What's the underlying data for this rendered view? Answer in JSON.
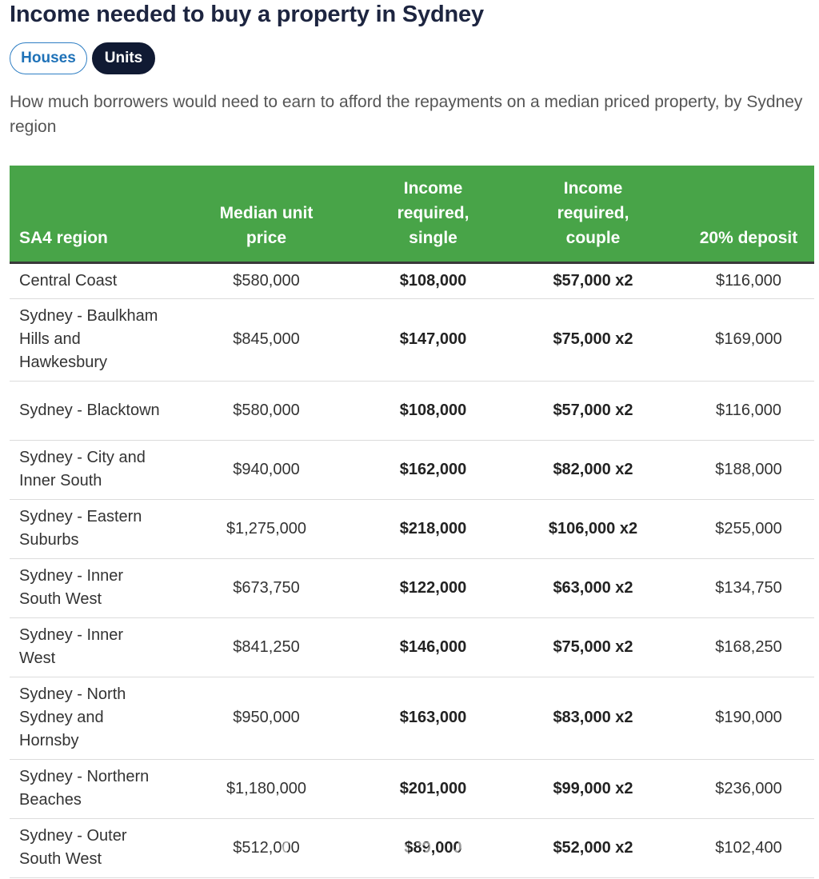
{
  "title": "Income needed to buy a property in Sydney",
  "toggle": {
    "houses_label": "Houses",
    "units_label": "Units",
    "selected": "Units"
  },
  "subtitle": "How much borrowers would need to earn to afford the repayments on a median priced property, by Sydney region",
  "colors": {
    "header_bg": "#48a448",
    "active_pill": "#101a33",
    "pill_border": "#2e7ec4"
  },
  "chart_data": {
    "type": "table",
    "columns": [
      "SA4 region",
      "Median unit price",
      "Income required, single",
      "Income required, couple",
      "20% deposit"
    ],
    "rows": [
      [
        "Central Coast",
        "$580,000",
        "$108,000",
        "$57,000 x2",
        "$116,000"
      ],
      [
        "Sydney - Baulkham Hills and Hawkesbury",
        "$845,000",
        "$147,000",
        "$75,000 x2",
        "$169,000"
      ],
      [
        "Sydney - Blacktown",
        "$580,000",
        "$108,000",
        "$57,000 x2",
        "$116,000"
      ],
      [
        "Sydney - City and Inner South",
        "$940,000",
        "$162,000",
        "$82,000 x2",
        "$188,000"
      ],
      [
        "Sydney - Eastern Suburbs",
        "$1,275,000",
        "$218,000",
        "$106,000 x2",
        "$255,000"
      ],
      [
        "Sydney - Inner South West",
        "$673,750",
        "$122,000",
        "$63,000 x2",
        "$134,750"
      ],
      [
        "Sydney - Inner West",
        "$841,250",
        "$146,000",
        "$75,000 x2",
        "$168,250"
      ],
      [
        "Sydney - North Sydney and Hornsby",
        "$950,000",
        "$163,000",
        "$83,000 x2",
        "$190,000"
      ],
      [
        "Sydney - Northern Beaches",
        "$1,180,000",
        "$201,000",
        "$99,000 x2",
        "$236,000"
      ],
      [
        "Sydney - Outer South West",
        "$512,000",
        "$89,000",
        "$52,000 x2",
        "$102,400"
      ]
    ]
  },
  "watermark": "Chinaz2au"
}
